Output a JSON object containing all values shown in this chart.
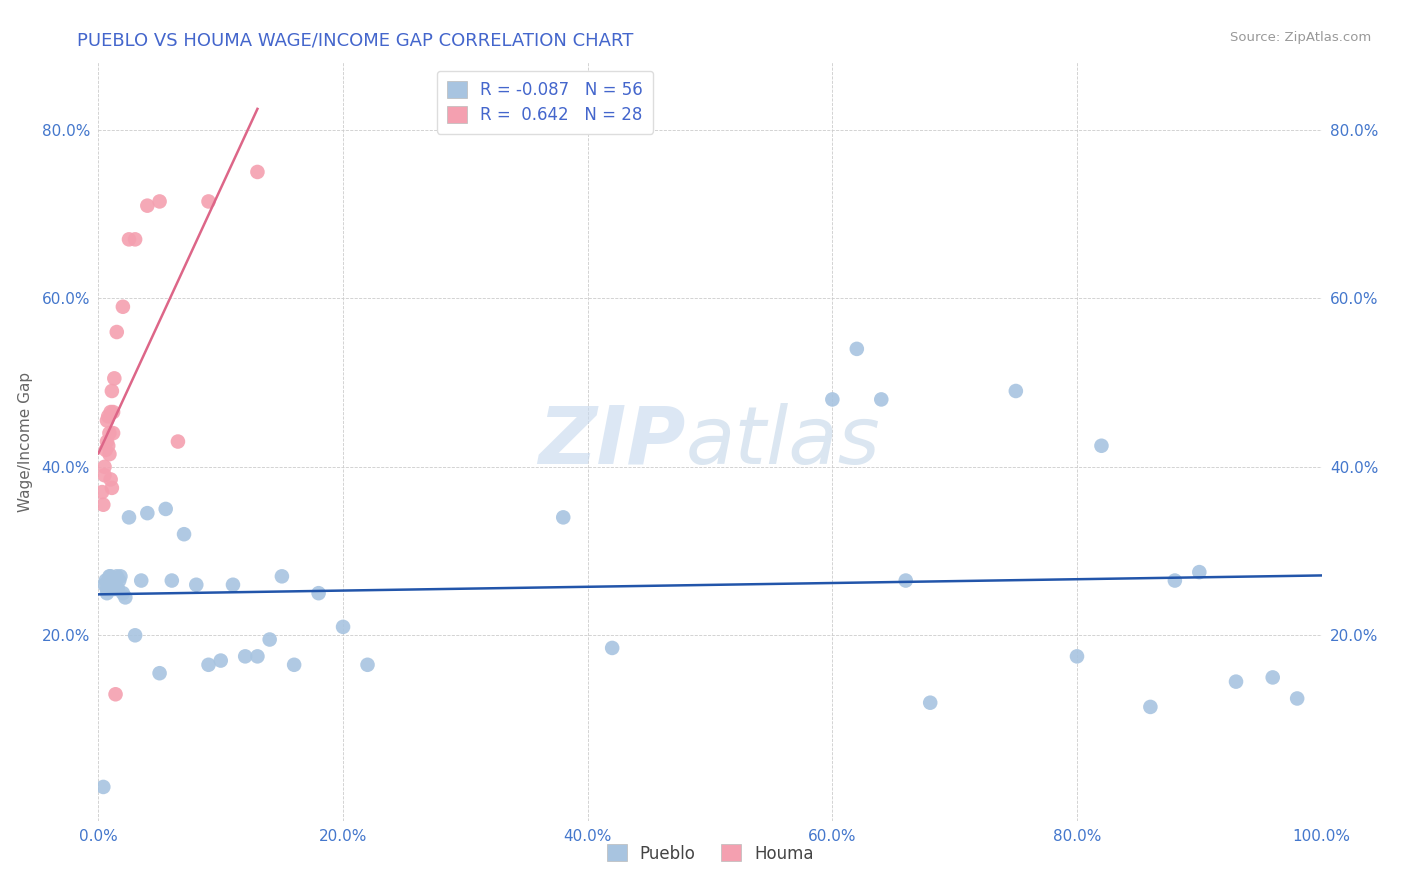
{
  "title": "PUEBLO VS HOUMA WAGE/INCOME GAP CORRELATION CHART",
  "source": "Source: ZipAtlas.com",
  "ylabel": "Wage/Income Gap",
  "xlim": [
    0.0,
    1.0
  ],
  "ylim": [
    -0.02,
    0.88
  ],
  "xtick_labels": [
    "0.0%",
    "20.0%",
    "40.0%",
    "60.0%",
    "80.0%",
    "100.0%"
  ],
  "xtick_vals": [
    0.0,
    0.2,
    0.4,
    0.6,
    0.8,
    1.0
  ],
  "ytick_labels": [
    "20.0%",
    "40.0%",
    "60.0%",
    "80.0%"
  ],
  "ytick_vals": [
    0.2,
    0.4,
    0.6,
    0.8
  ],
  "r_pueblo": -0.087,
  "n_pueblo": 56,
  "r_houma": 0.642,
  "n_houma": 28,
  "pueblo_color": "#a8c4e0",
  "houma_color": "#f4a0b0",
  "pueblo_line_color": "#2255aa",
  "houma_line_color": "#dd6688",
  "pueblo_x": [
    0.004,
    0.005,
    0.006,
    0.007,
    0.007,
    0.008,
    0.009,
    0.009,
    0.01,
    0.01,
    0.011,
    0.012,
    0.013,
    0.014,
    0.015,
    0.016,
    0.017,
    0.018,
    0.02,
    0.022,
    0.025,
    0.03,
    0.035,
    0.04,
    0.05,
    0.055,
    0.06,
    0.07,
    0.08,
    0.09,
    0.1,
    0.11,
    0.12,
    0.13,
    0.14,
    0.15,
    0.16,
    0.18,
    0.2,
    0.22,
    0.38,
    0.42,
    0.6,
    0.62,
    0.64,
    0.66,
    0.68,
    0.75,
    0.8,
    0.82,
    0.86,
    0.88,
    0.9,
    0.93,
    0.96,
    0.98
  ],
  "pueblo_y": [
    0.02,
    0.26,
    0.265,
    0.255,
    0.25,
    0.265,
    0.27,
    0.255,
    0.27,
    0.26,
    0.265,
    0.26,
    0.255,
    0.26,
    0.27,
    0.255,
    0.265,
    0.27,
    0.25,
    0.245,
    0.34,
    0.2,
    0.265,
    0.345,
    0.155,
    0.35,
    0.265,
    0.32,
    0.26,
    0.165,
    0.17,
    0.26,
    0.175,
    0.175,
    0.195,
    0.27,
    0.165,
    0.25,
    0.21,
    0.165,
    0.34,
    0.185,
    0.48,
    0.54,
    0.48,
    0.265,
    0.12,
    0.49,
    0.175,
    0.425,
    0.115,
    0.265,
    0.275,
    0.145,
    0.15,
    0.125
  ],
  "houma_x": [
    0.003,
    0.004,
    0.005,
    0.005,
    0.006,
    0.007,
    0.007,
    0.008,
    0.008,
    0.009,
    0.009,
    0.01,
    0.01,
    0.011,
    0.011,
    0.012,
    0.012,
    0.013,
    0.014,
    0.015,
    0.02,
    0.025,
    0.03,
    0.04,
    0.05,
    0.065,
    0.09,
    0.13
  ],
  "houma_y": [
    0.37,
    0.355,
    0.4,
    0.39,
    0.42,
    0.43,
    0.455,
    0.46,
    0.425,
    0.44,
    0.415,
    0.465,
    0.385,
    0.375,
    0.49,
    0.465,
    0.44,
    0.505,
    0.13,
    0.56,
    0.59,
    0.67,
    0.67,
    0.71,
    0.715,
    0.43,
    0.715,
    0.75
  ],
  "watermark_part1": "ZIP",
  "watermark_part2": "atlas",
  "background_color": "#ffffff",
  "grid_color": "#cccccc"
}
